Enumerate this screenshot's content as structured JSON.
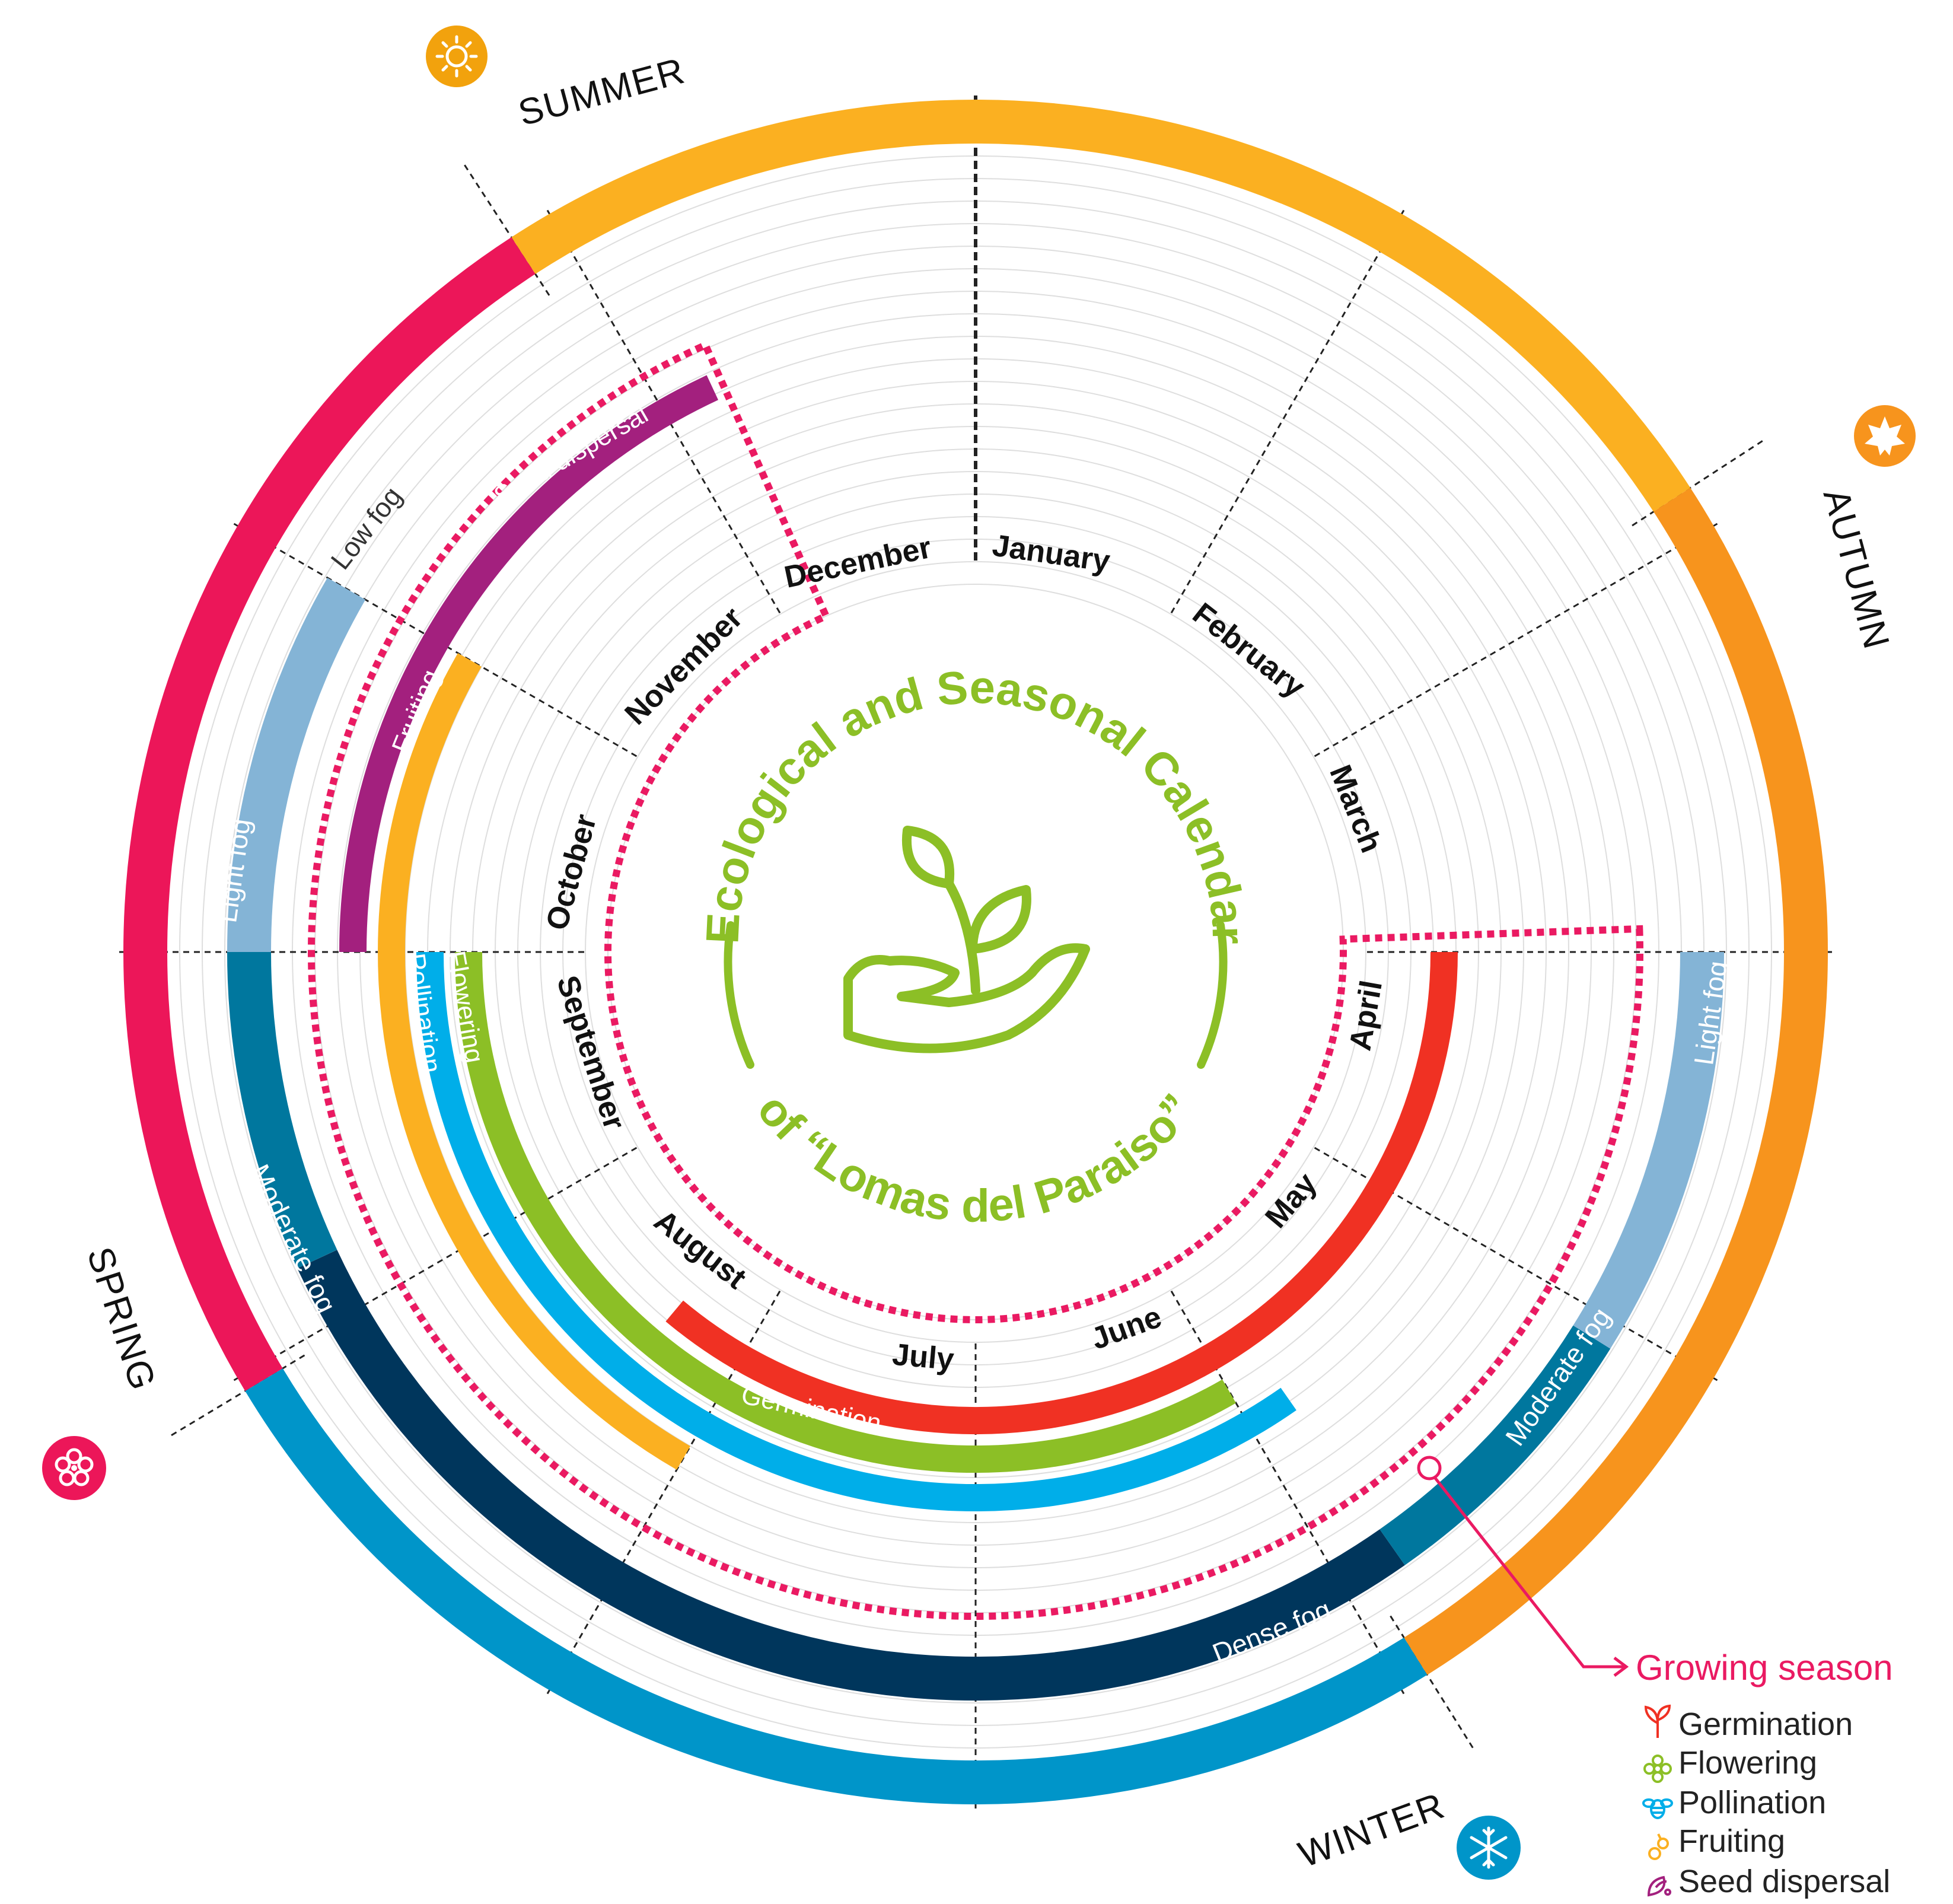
{
  "title": {
    "line1": "Ecological and Seasonal Calendar",
    "line2": "of “Lomas del Paraiso”"
  },
  "months": [
    "January",
    "February",
    "March",
    "April",
    "May",
    "June",
    "July",
    "August",
    "September",
    "October",
    "November",
    "December"
  ],
  "seasons": {
    "summer": "SUMMER",
    "autumn": "AUTUMN",
    "winter": "WINTER",
    "spring": "SPRING"
  },
  "fog": {
    "low": "Low fog",
    "light": "Light fog",
    "moderate": "Moderate fog",
    "dense": "Dense fog"
  },
  "phases": {
    "germination": "Germination",
    "flowering": "Flowering",
    "pollination": "Pollination",
    "fruiting": "Fruiting",
    "seed_dispersal": "Seed dispersal"
  },
  "legend": {
    "title": "Growing season",
    "items": [
      "Germination",
      "Flowering",
      "Pollination",
      "Fruiting",
      "Seed dispersal"
    ]
  },
  "colors": {
    "summer": "#fbb021",
    "autumn": "#f7941d",
    "winter": "#0095c9",
    "spring": "#ec1659",
    "light_fog": "#84b4d6",
    "moderate_fog": "#00779e",
    "dense_fog": "#00365c",
    "germination": "#f03123",
    "flowering": "#8cbf26",
    "pollination": "#00aee9",
    "fruiting": "#fbb021",
    "seed_dispersal": "#a3207e",
    "growing_season": "#ea1a62"
  },
  "icons": {
    "summer": "sun-icon",
    "autumn": "leaf-icon",
    "winter": "snowflake-icon",
    "spring": "blossom-icon",
    "center": "sprout-in-hand-icon"
  }
}
